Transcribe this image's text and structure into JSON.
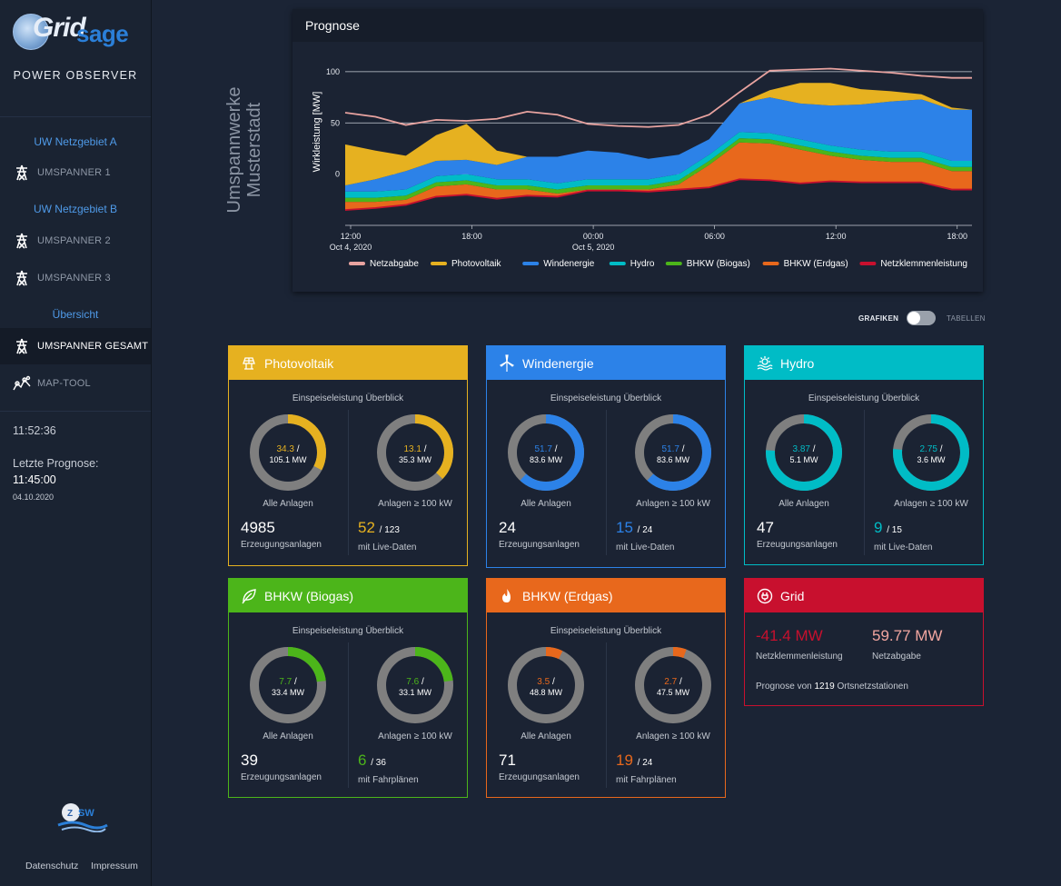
{
  "brand": {
    "logo_part1": "Grid",
    "logo_part2": "sage",
    "app_title": "POWER OBSERVER"
  },
  "sidebar": {
    "groups": [
      {
        "label": "UW Netzgebiet A"
      },
      {
        "label": "UW Netzgebiet B"
      },
      {
        "label": "Übersicht"
      }
    ],
    "items": [
      {
        "label": "UMSPANNER 1",
        "icon": "transformer-tower-icon"
      },
      {
        "label": "UMSPANNER 2",
        "icon": "transformer-tower-icon"
      },
      {
        "label": "UMSPANNER 3",
        "icon": "transformer-tower-icon"
      },
      {
        "label": "UMSPANNER GESAMT",
        "icon": "transformer-tower-icon",
        "active": true
      },
      {
        "label": "MAP-TOOL",
        "icon": "map-tool-icon"
      }
    ],
    "clock": "11:52:36",
    "forecast_label": "Letzte Prognose:",
    "forecast_time": "11:45:00",
    "forecast_date": "04.10.2020",
    "footer": {
      "privacy": "Datenschutz",
      "imprint": "Impressum"
    }
  },
  "page": {
    "title_line1": "Umspannwerke",
    "title_line2": "Musterstadt"
  },
  "forecast": {
    "title": "Prognose",
    "chart_data": {
      "type": "area",
      "ylabel": "Wirkleistung [MW]",
      "ylim": [
        -50,
        115
      ],
      "yticks": [
        0,
        50,
        100
      ],
      "xticks": [
        {
          "label": "12:00",
          "sub": "Oct 4, 2020"
        },
        {
          "label": "18:00",
          "sub": ""
        },
        {
          "label": "00:00",
          "sub": "Oct 5, 2020"
        },
        {
          "label": "06:00",
          "sub": ""
        },
        {
          "label": "12:00",
          "sub": ""
        },
        {
          "label": "18:00",
          "sub": ""
        }
      ],
      "x_hours": [
        0,
        1.5,
        3,
        4.5,
        6,
        7.5,
        9,
        10.5,
        12,
        13.5,
        15,
        16.5,
        18,
        19.5,
        21,
        22.5,
        24,
        25.5,
        27,
        28.5,
        30,
        31
      ],
      "grid": true,
      "legend_position": "bottom",
      "series": [
        {
          "name": "Netzklemmenleistung",
          "color": "#c8102e",
          "values": [
            -35,
            -33,
            -30,
            -22,
            -20,
            -24,
            -21,
            -22,
            -16,
            -16,
            -17,
            -15,
            -13,
            -5,
            -6,
            -9,
            -7,
            -8,
            -8,
            -8,
            -15,
            -15
          ]
        },
        {
          "name": "BHKW (Erdgas)",
          "color": "#e8681c",
          "values": [
            8,
            6,
            5,
            10,
            10,
            9,
            6,
            3,
            1,
            1,
            2,
            5,
            22,
            36,
            36,
            33,
            25,
            22,
            20,
            20,
            18,
            18
          ]
        },
        {
          "name": "BHKW (Biogas)",
          "color": "#4cb51a",
          "values": [
            4,
            4,
            4,
            4,
            4,
            4,
            4,
            4,
            4,
            4,
            4,
            4,
            4,
            4,
            4,
            4,
            4,
            4,
            4,
            4,
            4,
            4
          ]
        },
        {
          "name": "Hydro",
          "color": "#00bcc6",
          "values": [
            6,
            6,
            6,
            6,
            6,
            6,
            6,
            6,
            6,
            6,
            6,
            6,
            6,
            6,
            6,
            6,
            6,
            6,
            6,
            6,
            6,
            6
          ]
        },
        {
          "name": "Windenergie",
          "color": "#2c82e8",
          "values": [
            6,
            12,
            18,
            15,
            14,
            14,
            22,
            26,
            28,
            26,
            20,
            19,
            15,
            28,
            35,
            35,
            39,
            44,
            49,
            51,
            50,
            50
          ]
        },
        {
          "name": "Photovoltaik",
          "color": "#e6b120",
          "values": [
            40,
            28,
            15,
            25,
            35,
            14,
            0,
            0,
            0,
            0,
            0,
            0,
            0,
            0,
            7,
            20,
            22,
            15,
            10,
            5,
            2,
            0
          ]
        },
        {
          "name": "Netzabgabe",
          "color": "#e8a3a0",
          "values": [
            60,
            56,
            48,
            53,
            52,
            54,
            61,
            58,
            49,
            47,
            46,
            48,
            58,
            80,
            101,
            102,
            103,
            101,
            99,
            96,
            94,
            94
          ]
        }
      ]
    }
  },
  "toggle": {
    "left": "GRAFIKEN",
    "right": "TABELLEN"
  },
  "cards": {
    "pv": {
      "title": "Photovoltaik",
      "color": "#e6b120",
      "icon": "solar-panel-icon",
      "subtitle": "Einspeiseleistung Überblick",
      "all": {
        "value": "34.3",
        "total": "105.1 MW",
        "label": "Alle Anlagen",
        "fraction": 0.326
      },
      "big": {
        "value": "13.1",
        "total": "35.3 MW",
        "label": "Anlagen ≥ 100 kW",
        "fraction": 0.371
      },
      "count": "4985",
      "count_label": "Erzeugungsanlagen",
      "live": "52",
      "live_total": "/ 123",
      "live_label": "mit Live-Daten"
    },
    "wind": {
      "title": "Windenergie",
      "color": "#2c82e8",
      "icon": "wind-turbine-icon",
      "subtitle": "Einspeiseleistung Überblick",
      "all": {
        "value": "51.7",
        "total": "83.6 MW",
        "label": "Alle Anlagen",
        "fraction": 0.618
      },
      "big": {
        "value": "51.7",
        "total": "83.6 MW",
        "label": "Anlagen ≥ 100 kW",
        "fraction": 0.618
      },
      "count": "24",
      "count_label": "Erzeugungsanlagen",
      "live": "15",
      "live_total": "/ 24",
      "live_label": "mit Live-Daten"
    },
    "hydro": {
      "title": "Hydro",
      "color": "#00bcc6",
      "icon": "hydro-icon",
      "subtitle": "Einspeiseleistung Überblick",
      "all": {
        "value": "3.87",
        "total": "5.1 MW",
        "label": "Alle Anlagen",
        "fraction": 0.759
      },
      "big": {
        "value": "2.75",
        "total": "3.6 MW",
        "label": "Anlagen ≥ 100 kW",
        "fraction": 0.764
      },
      "count": "47",
      "count_label": "Erzeugungsanlagen",
      "live": "9",
      "live_total": "/ 15",
      "live_label": "mit Live-Daten"
    },
    "biogas": {
      "title": "BHKW (Biogas)",
      "color": "#4cb51a",
      "icon": "leaf-icon",
      "subtitle": "Einspeiseleistung Überblick",
      "all": {
        "value": "7.7",
        "total": "33.4 MW",
        "label": "Alle Anlagen",
        "fraction": 0.231
      },
      "big": {
        "value": "7.6",
        "total": "33.1 MW",
        "label": "Anlagen ≥ 100 kW",
        "fraction": 0.23
      },
      "count": "39",
      "count_label": "Erzeugungsanlagen",
      "live": "6",
      "live_total": "/ 36",
      "live_label": "mit Fahrplänen"
    },
    "erdgas": {
      "title": "BHKW (Erdgas)",
      "color": "#e8681c",
      "icon": "flame-icon",
      "subtitle": "Einspeiseleistung Überblick",
      "all": {
        "value": "3.5",
        "total": "48.8 MW",
        "label": "Alle Anlagen",
        "fraction": 0.072
      },
      "big": {
        "value": "2.7",
        "total": "47.5 MW",
        "label": "Anlagen ≥ 100 kW",
        "fraction": 0.057
      },
      "count": "71",
      "count_label": "Erzeugungsanlagen",
      "live": "19",
      "live_total": "/ 24",
      "live_label": "mit Fahrplänen"
    },
    "grid": {
      "title": "Grid",
      "color": "#c8102e",
      "icon": "plug-icon",
      "netzklemmen": "-41.4 MW",
      "netzklemmen_label": "Netzklemmenleistung",
      "netzabgabe": "59.77 MW",
      "netzabgabe_label": "Netzabgabe",
      "summary_prefix": "Prognose von",
      "summary_count": "1219",
      "summary_suffix": "Ortsnetzstationen"
    }
  }
}
